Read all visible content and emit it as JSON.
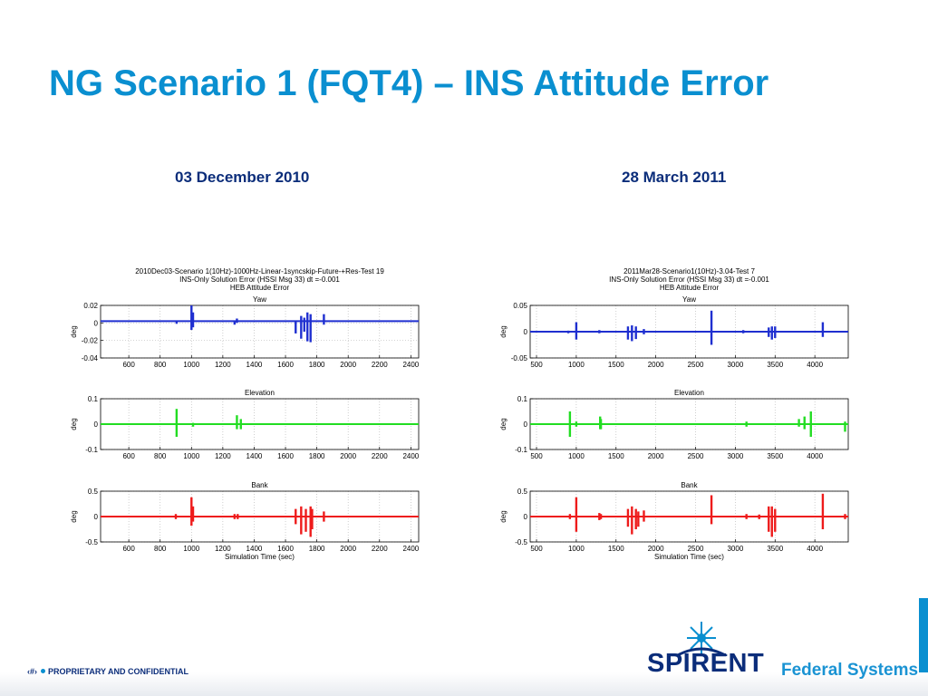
{
  "slide": {
    "title": "NG Scenario 1 (FQT4) – INS Attitude Error",
    "left_heading": "03 December 2010",
    "right_heading": "28 March 2011"
  },
  "footer": {
    "page_marker": "‹#›",
    "confidentiality": "PROPRIETARY AND CONFIDENTIAL"
  },
  "logo": {
    "wordmark": "SPIRENT",
    "subtitle": "Federal Systems",
    "brand_color": "#0b2d7a",
    "accent_color": "#0a8fd0"
  },
  "chart_data": [
    {
      "type": "line",
      "figure_title": [
        "2010Dec03-Scenario 1(10Hz)-1000Hz-Linear-1syncskip-Future-+Res-Test 19",
        "INS-Only Solution Error (HSSI Msg 33)  dt =-0.001",
        "HEB Attitude Error"
      ],
      "xlabel": "Simulation Time (sec)",
      "xlim": [
        420,
        2450
      ],
      "xticks": [
        600,
        800,
        1000,
        1200,
        1400,
        1600,
        1800,
        2000,
        2200,
        2400
      ],
      "panels": [
        {
          "title": "Yaw",
          "ylabel": "deg",
          "ylim": [
            -0.04,
            0.02
          ],
          "yticks": [
            "0.02",
            "0",
            "-0.02",
            "-0.04"
          ],
          "ytick_values": [
            0.02,
            0,
            -0.02,
            -0.04
          ],
          "color": "#1f2fd0",
          "baseline": 0.002,
          "spikes": [
            [
              905,
              -0.001,
              0.002
            ],
            [
              1000,
              0.02,
              -0.008
            ],
            [
              1010,
              0.012,
              -0.005
            ],
            [
              1275,
              -0.002,
              0.002
            ],
            [
              1290,
              0.005,
              0.0
            ],
            [
              1665,
              -0.012,
              0.002
            ],
            [
              1700,
              -0.018,
              0.008
            ],
            [
              1720,
              -0.01,
              0.006
            ],
            [
              1740,
              -0.021,
              0.012
            ],
            [
              1760,
              -0.022,
              0.01
            ],
            [
              1845,
              -0.002,
              0.01
            ]
          ]
        },
        {
          "title": "Elevation",
          "ylabel": "deg",
          "ylim": [
            -0.1,
            0.1
          ],
          "yticks": [
            "0.1",
            "0",
            "-0.1"
          ],
          "ytick_values": [
            0.1,
            0,
            -0.1
          ],
          "color": "#22dd22",
          "baseline": 0.0,
          "spikes": [
            [
              905,
              0.06,
              -0.05
            ],
            [
              1010,
              -0.01,
              0.005
            ],
            [
              1290,
              0.035,
              -0.02
            ],
            [
              1315,
              0.02,
              -0.02
            ],
            [
              1720,
              0.003,
              0.0
            ]
          ]
        },
        {
          "title": "Bank",
          "ylabel": "deg",
          "ylim": [
            -0.5,
            0.5
          ],
          "yticks": [
            "0.5",
            "0",
            "-0.5"
          ],
          "ytick_values": [
            0.5,
            0,
            -0.5
          ],
          "color": "#ee1b1b",
          "baseline": 0.0,
          "spikes": [
            [
              900,
              -0.05,
              0.05
            ],
            [
              1000,
              0.38,
              -0.18
            ],
            [
              1010,
              0.2,
              -0.1
            ],
            [
              1275,
              0.05,
              -0.05
            ],
            [
              1295,
              0.05,
              -0.05
            ],
            [
              1665,
              0.15,
              -0.15
            ],
            [
              1700,
              0.2,
              -0.35
            ],
            [
              1730,
              0.15,
              -0.3
            ],
            [
              1760,
              0.2,
              -0.4
            ],
            [
              1770,
              0.15,
              -0.25
            ],
            [
              1845,
              0.1,
              -0.1
            ]
          ]
        }
      ]
    },
    {
      "type": "line",
      "figure_title": [
        "2011Mar28-Scenario1(10Hz)-3.04-Test 7",
        "INS-Only Solution Error (HSSI Msg 33)  dt =-0.001",
        "HEB Attitude Error"
      ],
      "xlabel": "Simulation Time (sec)",
      "xlim": [
        420,
        4420
      ],
      "xticks": [
        500,
        1000,
        1500,
        2000,
        2500,
        3000,
        3500,
        4000
      ],
      "panels": [
        {
          "title": "Yaw",
          "ylabel": "deg",
          "ylim": [
            -0.05,
            0.05
          ],
          "yticks": [
            "0.05",
            "0",
            "-0.05"
          ],
          "ytick_values": [
            0.05,
            0,
            -0.05
          ],
          "color": "#1f2fd0",
          "baseline": 0.0,
          "spikes": [
            [
              900,
              -0.003,
              0.002
            ],
            [
              1000,
              0.018,
              -0.015
            ],
            [
              1290,
              -0.003,
              0.003
            ],
            [
              1650,
              0.01,
              -0.015
            ],
            [
              1700,
              0.012,
              -0.018
            ],
            [
              1750,
              0.01,
              -0.014
            ],
            [
              1850,
              0.005,
              -0.005
            ],
            [
              2700,
              0.04,
              -0.025
            ],
            [
              3100,
              -0.003,
              0.003
            ],
            [
              3420,
              0.008,
              -0.01
            ],
            [
              3460,
              0.01,
              -0.015
            ],
            [
              3500,
              0.01,
              -0.012
            ],
            [
              4100,
              0.018,
              -0.01
            ]
          ]
        },
        {
          "title": "Elevation",
          "ylabel": "deg",
          "ylim": [
            -0.1,
            0.1
          ],
          "yticks": [
            "0.1",
            "0",
            "-0.1"
          ],
          "ytick_values": [
            0.1,
            0,
            -0.1
          ],
          "color": "#22dd22",
          "baseline": 0.0,
          "spikes": [
            [
              920,
              0.05,
              -0.05
            ],
            [
              1000,
              0.01,
              -0.01
            ],
            [
              1300,
              0.03,
              -0.02
            ],
            [
              1310,
              0.02,
              -0.02
            ],
            [
              3140,
              0.01,
              -0.01
            ],
            [
              3800,
              0.02,
              -0.01
            ],
            [
              3870,
              0.03,
              -0.02
            ],
            [
              3950,
              0.05,
              -0.05
            ],
            [
              4380,
              0.01,
              -0.03
            ]
          ]
        },
        {
          "title": "Bank",
          "ylabel": "deg",
          "ylim": [
            -0.5,
            0.5
          ],
          "yticks": [
            "0.5",
            "0",
            "-0.5"
          ],
          "ytick_values": [
            0.5,
            0,
            -0.5
          ],
          "color": "#ee1b1b",
          "baseline": 0.0,
          "spikes": [
            [
              920,
              0.05,
              -0.05
            ],
            [
              1000,
              0.38,
              -0.3
            ],
            [
              1290,
              0.07,
              -0.07
            ],
            [
              1310,
              0.05,
              -0.05
            ],
            [
              1650,
              0.15,
              -0.2
            ],
            [
              1700,
              0.2,
              -0.35
            ],
            [
              1750,
              0.15,
              -0.25
            ],
            [
              1780,
              0.1,
              -0.2
            ],
            [
              1850,
              0.12,
              -0.1
            ],
            [
              2700,
              0.42,
              -0.15
            ],
            [
              3140,
              0.05,
              -0.05
            ],
            [
              3300,
              0.04,
              -0.05
            ],
            [
              3420,
              0.2,
              -0.3
            ],
            [
              3460,
              0.2,
              -0.4
            ],
            [
              3500,
              0.15,
              -0.3
            ],
            [
              4100,
              0.45,
              -0.25
            ],
            [
              4380,
              0.05,
              -0.05
            ]
          ]
        }
      ]
    }
  ]
}
